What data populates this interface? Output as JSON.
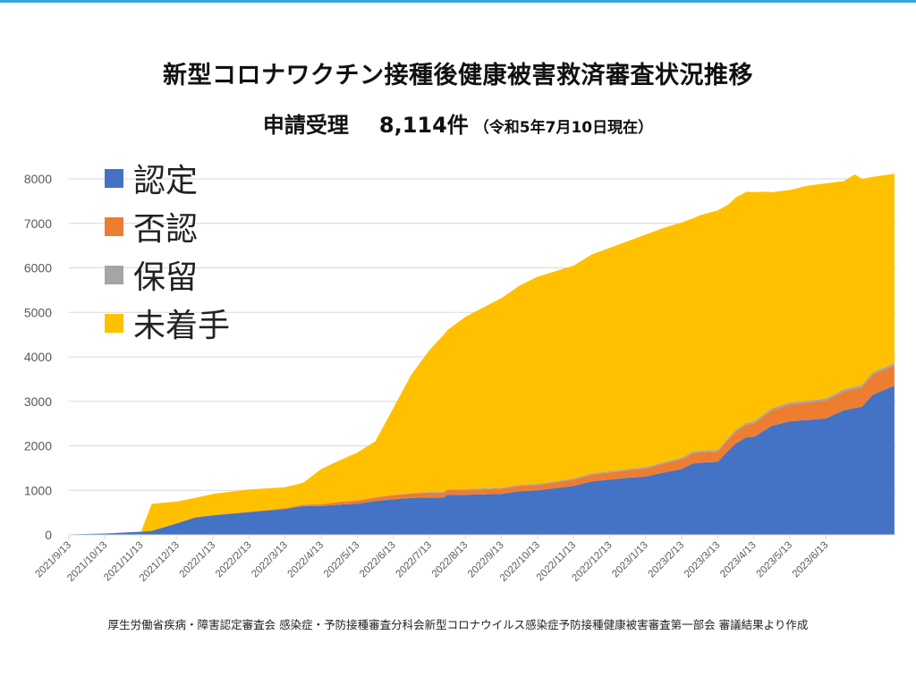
{
  "header": {
    "title": "新型コロナワクチン接種後健康被害救済審査状況推移",
    "subtitle_main": "申請受理",
    "subtitle_count": "8,114件",
    "subtitle_note": "（令和5年7月10日現在）"
  },
  "source_note": "厚生労働省疾病・障害認定審査会 感染症・予防接種審査分科会新型コロナウイルス感染症予防接種健康被害審査第一部会 審議結果より作成",
  "colors": {
    "certified": "#4472c4",
    "denied": "#ed7d31",
    "pending": "#a5a5a5",
    "unreviewed": "#ffc000",
    "top_bar": "#3aa7d6",
    "grid": "#d9d9d9",
    "axis_text": "#595959"
  },
  "chart_data": {
    "type": "area",
    "stacked": true,
    "title": "新型コロナワクチン接種後健康被害救済審査状況推移",
    "subtitle": "申請受理 8,114件（令和5年7月10日現在）",
    "xlabel": "",
    "ylabel": "",
    "ylim": [
      0,
      8000
    ],
    "yticks": [
      0,
      1000,
      2000,
      3000,
      4000,
      5000,
      6000,
      7000,
      8000
    ],
    "grid": true,
    "legend_position": "top-left",
    "x_tick_labels": [
      "2021/9/13",
      "2021/10/13",
      "2021/11/13",
      "2021/12/13",
      "2022/1/13",
      "2022/2/13",
      "2022/3/13",
      "2022/4/13",
      "2022/5/13",
      "2022/6/13",
      "2022/7/13",
      "2022/8/13",
      "2022/9/13",
      "2022/10/13",
      "2022/11/13",
      "2022/12/13",
      "2023/1/13",
      "2023/2/13",
      "2023/3/13",
      "2023/4/13",
      "2023/5/13",
      "2023/6/13"
    ],
    "x": [
      0,
      1,
      2,
      2.3,
      3,
      3.5,
      4,
      5,
      6,
      6.5,
      7,
      7.5,
      8,
      8.5,
      9,
      9.5,
      10,
      10.4,
      10.5,
      11,
      12,
      12.5,
      13,
      14,
      14.5,
      15,
      15.5,
      16,
      16.5,
      17,
      17.3,
      17.5,
      18,
      18.3,
      18.5,
      18.8,
      19,
      19.3,
      19.5,
      20,
      20.5,
      21,
      21.5,
      21.8,
      22,
      22.3,
      22.9
    ],
    "series": [
      {
        "name": "認定",
        "values": [
          10,
          30,
          70,
          90,
          260,
          390,
          440,
          510,
          580,
          650,
          650,
          680,
          700,
          760,
          800,
          830,
          840,
          840,
          900,
          900,
          920,
          980,
          1000,
          1100,
          1200,
          1240,
          1280,
          1310,
          1400,
          1480,
          1600,
          1620,
          1640,
          1900,
          2050,
          2200,
          2200,
          2350,
          2450,
          2550,
          2580,
          2620,
          2800,
          2850,
          2880,
          3150,
          3350
        ]
      },
      {
        "name": "否認",
        "values": [
          0,
          0,
          0,
          0,
          0,
          0,
          0,
          10,
          20,
          30,
          40,
          60,
          70,
          80,
          90,
          100,
          110,
          110,
          110,
          110,
          120,
          120,
          120,
          140,
          150,
          160,
          170,
          180,
          200,
          220,
          230,
          230,
          230,
          250,
          270,
          280,
          300,
          330,
          350,
          380,
          390,
          400,
          420,
          430,
          440,
          450,
          460
        ]
      },
      {
        "name": "保留",
        "values": [
          0,
          0,
          0,
          0,
          0,
          0,
          0,
          0,
          0,
          0,
          0,
          5,
          5,
          10,
          10,
          10,
          15,
          15,
          15,
          20,
          20,
          25,
          25,
          25,
          30,
          30,
          30,
          30,
          35,
          35,
          40,
          40,
          40,
          40,
          40,
          40,
          45,
          45,
          45,
          45,
          45,
          45,
          50,
          50,
          50,
          50,
          50
        ]
      },
      {
        "name": "未着手",
        "values": [
          0,
          0,
          0,
          610,
          490,
          440,
          480,
          500,
          470,
          490,
          790,
          925,
          1075,
          1250,
          1950,
          2660,
          3185,
          3535,
          3575,
          3870,
          4260,
          4475,
          4655,
          4785,
          4920,
          5020,
          5120,
          5230,
          5265,
          5285,
          5240,
          5290,
          5380,
          5240,
          5220,
          5190,
          5155,
          4985,
          4855,
          4775,
          4835,
          4835,
          4680,
          4770,
          4630,
          4395,
          4254
        ]
      }
    ],
    "total_applications": 8114,
    "as_of": "令和5年7月10日"
  }
}
